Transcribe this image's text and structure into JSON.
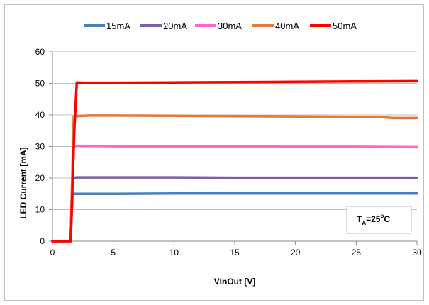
{
  "chart_data": {
    "type": "line",
    "title": "",
    "xlabel": "VInOut [V]",
    "ylabel": "LED Current [mA]",
    "xlim": [
      0,
      30
    ],
    "ylim": [
      0,
      60
    ],
    "xticks": [
      0,
      5,
      10,
      15,
      20,
      25,
      30
    ],
    "yticks": [
      0,
      10,
      20,
      30,
      40,
      50,
      60
    ],
    "grid": "horizontal",
    "legend_position": "top",
    "annotation": {
      "main": "T",
      "sub": "A",
      "value": "=25",
      "sup": "o",
      "unit": "C"
    },
    "series": [
      {
        "name": "15mA",
        "color": "#4a7ebb",
        "x": [
          0,
          1.5,
          1.65,
          2,
          5,
          10,
          15,
          20,
          25,
          30
        ],
        "y": [
          0,
          0,
          15,
          15,
          15,
          15.1,
          15.1,
          15.1,
          15.1,
          15.1
        ]
      },
      {
        "name": "20mA",
        "color": "#7b5ea7",
        "x": [
          0,
          1.5,
          1.65,
          2,
          3,
          5,
          10,
          15,
          20,
          25,
          30
        ],
        "y": [
          0,
          0,
          20,
          20.2,
          20.2,
          20.2,
          20.2,
          20.1,
          20.1,
          20.1,
          20.1
        ]
      },
      {
        "name": "30mA",
        "color": "#ff66cc",
        "x": [
          0,
          1.5,
          1.7,
          2,
          5,
          10,
          15,
          20,
          25,
          30
        ],
        "y": [
          0,
          0,
          30,
          30.2,
          30.1,
          30.0,
          30.0,
          29.9,
          29.9,
          29.8
        ]
      },
      {
        "name": "40mA",
        "color": "#e07b39",
        "x": [
          0,
          1.5,
          1.75,
          2,
          3,
          5,
          10,
          15,
          20,
          25,
          27,
          28,
          30
        ],
        "y": [
          0,
          0,
          39.5,
          39.6,
          39.8,
          39.8,
          39.7,
          39.6,
          39.5,
          39.4,
          39.3,
          39.0,
          39.0
        ]
      },
      {
        "name": "50mA",
        "color": "#ff0000",
        "x": [
          0,
          1.5,
          1.8,
          2.0,
          2.5,
          5,
          10,
          15,
          20,
          25,
          30
        ],
        "y": [
          0,
          0,
          35,
          50.3,
          50.2,
          50.2,
          50.3,
          50.4,
          50.5,
          50.6,
          50.7
        ]
      }
    ]
  }
}
